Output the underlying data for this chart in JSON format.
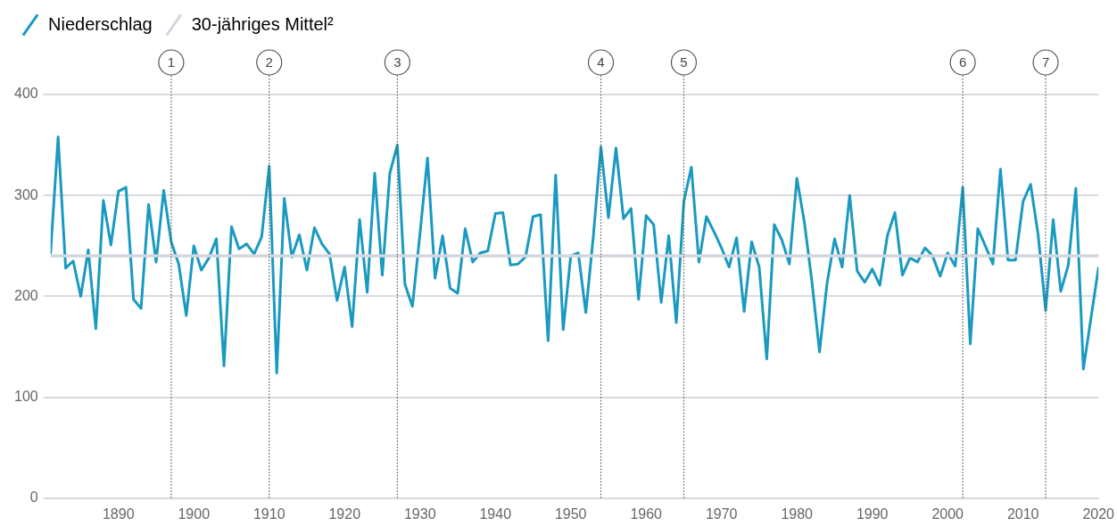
{
  "chart_data": {
    "type": "line",
    "x": [
      1881,
      1882,
      1883,
      1884,
      1885,
      1886,
      1887,
      1888,
      1889,
      1890,
      1891,
      1892,
      1893,
      1894,
      1895,
      1896,
      1897,
      1898,
      1899,
      1900,
      1901,
      1902,
      1903,
      1904,
      1905,
      1906,
      1907,
      1908,
      1909,
      1910,
      1911,
      1912,
      1913,
      1914,
      1915,
      1916,
      1917,
      1918,
      1919,
      1920,
      1921,
      1922,
      1923,
      1924,
      1925,
      1926,
      1927,
      1928,
      1929,
      1930,
      1931,
      1932,
      1933,
      1934,
      1935,
      1936,
      1937,
      1938,
      1939,
      1940,
      1941,
      1942,
      1943,
      1944,
      1945,
      1946,
      1947,
      1948,
      1949,
      1950,
      1951,
      1952,
      1953,
      1954,
      1955,
      1956,
      1957,
      1958,
      1959,
      1960,
      1961,
      1962,
      1963,
      1964,
      1965,
      1966,
      1967,
      1968,
      1969,
      1970,
      1971,
      1972,
      1973,
      1974,
      1975,
      1976,
      1977,
      1978,
      1979,
      1980,
      1981,
      1982,
      1983,
      1984,
      1985,
      1986,
      1987,
      1988,
      1989,
      1990,
      1991,
      1992,
      1993,
      1994,
      1995,
      1996,
      1997,
      1998,
      1999,
      2000,
      2001,
      2002,
      2003,
      2004,
      2005,
      2006,
      2007,
      2008,
      2009,
      2010,
      2011,
      2012,
      2013,
      2014,
      2015,
      2016,
      2017,
      2018,
      2019,
      2020
    ],
    "series": [
      {
        "name": "Niederschlag",
        "color": "#1a9ac0",
        "values": [
          243,
          358,
          228,
          235,
          200,
          246,
          168,
          295,
          251,
          304,
          308,
          197,
          188,
          291,
          234,
          305,
          254,
          232,
          181,
          250,
          226,
          238,
          257,
          131,
          269,
          247,
          252,
          242,
          259,
          329,
          124,
          297,
          239,
          261,
          226,
          268,
          252,
          242,
          196,
          229,
          170,
          276,
          204,
          322,
          221,
          322,
          350,
          212,
          190,
          262,
          337,
          218,
          260,
          208,
          203,
          267,
          234,
          243,
          245,
          282,
          283,
          231,
          232,
          239,
          279,
          281,
          156,
          320,
          167,
          240,
          243,
          184,
          260,
          348,
          278,
          347,
          277,
          287,
          197,
          280,
          271,
          194,
          260,
          174,
          294,
          328,
          234,
          279,
          264,
          248,
          229,
          258,
          185,
          254,
          229,
          138,
          271,
          256,
          232,
          317,
          273,
          214,
          145,
          213,
          257,
          229,
          300,
          225,
          214,
          227,
          211,
          260,
          283,
          221,
          238,
          234,
          248,
          240,
          220,
          243,
          230,
          308,
          153,
          267,
          250,
          232,
          326,
          236,
          236,
          294,
          311,
          261,
          186,
          276,
          205,
          231,
          307,
          128,
          178,
          228
        ]
      },
      {
        "name": "30-jähriges Mittel²",
        "color": "#d3d6de",
        "x": [
          1881,
          2020
        ],
        "values": [
          240,
          240
        ]
      }
    ],
    "xlim": [
      1881,
      2020
    ],
    "xticks": [
      1890,
      1900,
      1910,
      1920,
      1930,
      1940,
      1950,
      1960,
      1970,
      1980,
      1990,
      2000,
      2010,
      2020
    ],
    "ylim": [
      0,
      400
    ],
    "yticks": [
      0,
      100,
      200,
      300,
      400
    ],
    "grid": "y",
    "legend": "top left",
    "marker": "none",
    "ref_lines": [
      {
        "axis": "x",
        "value": 1897,
        "color": "#555555",
        "line_style": "dotted"
      },
      {
        "axis": "x",
        "value": 1910,
        "color": "#555555",
        "line_style": "dotted"
      },
      {
        "axis": "x",
        "value": 1927,
        "color": "#555555",
        "line_style": "dotted"
      },
      {
        "axis": "x",
        "value": 1954,
        "color": "#555555",
        "line_style": "dotted"
      },
      {
        "axis": "x",
        "value": 1965,
        "color": "#555555",
        "line_style": "dotted"
      },
      {
        "axis": "x",
        "value": 2002,
        "color": "#555555",
        "line_style": "dotted"
      },
      {
        "axis": "x",
        "value": 2013,
        "color": "#555555",
        "line_style": "dotted"
      }
    ],
    "annotations": [
      "1",
      "2",
      "3",
      "4",
      "5",
      "6",
      "7"
    ]
  }
}
